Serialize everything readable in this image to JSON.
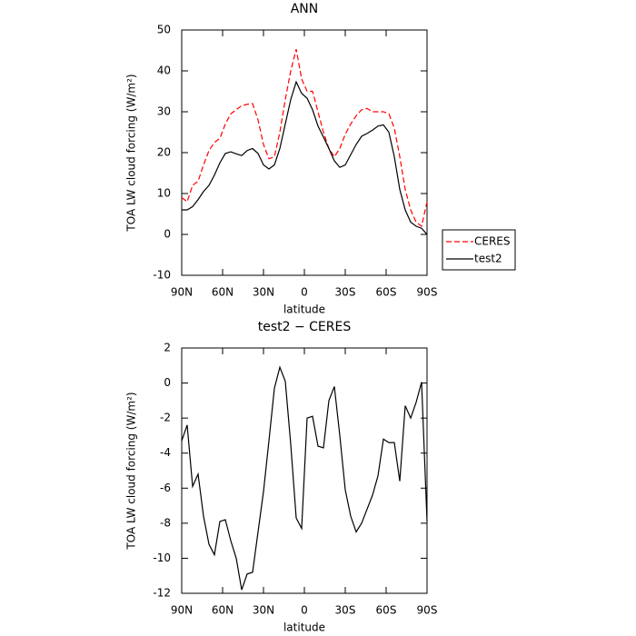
{
  "chart_data": [
    {
      "type": "line",
      "title": "ANN",
      "x_label": "latitude",
      "y_label": "TOA LW cloud forcing (W/m²)",
      "x": [
        90,
        86,
        82,
        78,
        74,
        70,
        66,
        62,
        58,
        54,
        50,
        46,
        42,
        38,
        34,
        30,
        26,
        22,
        18,
        14,
        10,
        6,
        2,
        -2,
        -6,
        -10,
        -14,
        -18,
        -22,
        -26,
        -30,
        -34,
        -38,
        -42,
        -46,
        -50,
        -54,
        -58,
        -62,
        -66,
        -70,
        -74,
        -78,
        -82,
        -86,
        -90
      ],
      "xlim": [
        90,
        -90
      ],
      "xticks": [
        {
          "value": 90,
          "label": "90N"
        },
        {
          "value": 60,
          "label": "60N"
        },
        {
          "value": 30,
          "label": "30N"
        },
        0,
        {
          "value": -30,
          "label": "30S"
        },
        {
          "value": -60,
          "label": "60S"
        },
        {
          "value": -90,
          "label": "90S"
        }
      ],
      "ylim": [
        -10,
        50
      ],
      "yticks": [
        -10,
        0,
        10,
        20,
        30,
        40,
        50
      ],
      "legend": "outside-right",
      "series": [
        {
          "name": "CERES",
          "color": "#ff0000",
          "dashed": true,
          "values": [
            9,
            8,
            12,
            13,
            17,
            20.5,
            22.5,
            23.5,
            27,
            29.5,
            30.5,
            31.5,
            31.8,
            32,
            28,
            22,
            18.5,
            19,
            25,
            33,
            40,
            45.3,
            38,
            35,
            35,
            30,
            25,
            21,
            19,
            21,
            24.5,
            27,
            29,
            30.5,
            30.8,
            30,
            30,
            30,
            29.5,
            26,
            19,
            11,
            6,
            3,
            2,
            8
          ]
        },
        {
          "name": "test2",
          "color": "#000000",
          "dashed": false,
          "values": [
            6,
            6,
            6.8,
            8.5,
            10.5,
            12,
            14.5,
            17.5,
            19.8,
            20.2,
            19.7,
            19.3,
            20.5,
            21,
            19.8,
            17,
            16,
            17,
            21,
            27,
            33,
            37.3,
            34.5,
            33.3,
            30.5,
            26.5,
            23.8,
            21,
            18,
            16.4,
            17,
            19.5,
            22,
            24,
            24.7,
            25.5,
            26.5,
            26.8,
            25,
            19,
            11,
            6,
            3,
            2,
            1.5,
            0
          ]
        }
      ]
    },
    {
      "type": "line",
      "title": "test2 − CERES",
      "x_label": "latitude",
      "y_label": "TOA LW cloud forcing (W/m²)",
      "x": [
        90,
        86,
        82,
        78,
        74,
        70,
        66,
        62,
        58,
        54,
        50,
        46,
        42,
        38,
        34,
        30,
        26,
        22,
        18,
        14,
        10,
        6,
        2,
        -2,
        -6,
        -10,
        -14,
        -18,
        -22,
        -26,
        -30,
        -34,
        -38,
        -42,
        -46,
        -50,
        -54,
        -58,
        -62,
        -66,
        -70,
        -74,
        -78,
        -82,
        -86,
        -90
      ],
      "xlim": [
        90,
        -90
      ],
      "xticks": [
        {
          "value": 90,
          "label": "90N"
        },
        {
          "value": 60,
          "label": "60N"
        },
        {
          "value": 30,
          "label": "30N"
        },
        0,
        {
          "value": -30,
          "label": "30S"
        },
        {
          "value": -60,
          "label": "60S"
        },
        {
          "value": -90,
          "label": "90S"
        }
      ],
      "ylim": [
        -12,
        2
      ],
      "yticks": [
        -12,
        -10,
        -8,
        -6,
        -4,
        -2,
        0,
        2
      ],
      "series": [
        {
          "color": "#000000",
          "dashed": false,
          "values": [
            -3.3,
            -2.4,
            -5.9,
            -5.2,
            -7.6,
            -9.2,
            -9.8,
            -7.9,
            -7.8,
            -9,
            -10,
            -11.8,
            -10.9,
            -10.8,
            -8.5,
            -6.2,
            -3.3,
            -0.3,
            0.9,
            0.1,
            -3.5,
            -7.7,
            -8.3,
            -2,
            -1.9,
            -3.6,
            -3.7,
            -1,
            -0.2,
            -3,
            -6.1,
            -7.6,
            -8.5,
            -8,
            -7.2,
            -6.4,
            -5.3,
            -3.2,
            -3.4,
            -3.4,
            -5.6,
            -1.3,
            -2,
            -1.1,
            0.05,
            -7.9
          ]
        }
      ]
    }
  ]
}
